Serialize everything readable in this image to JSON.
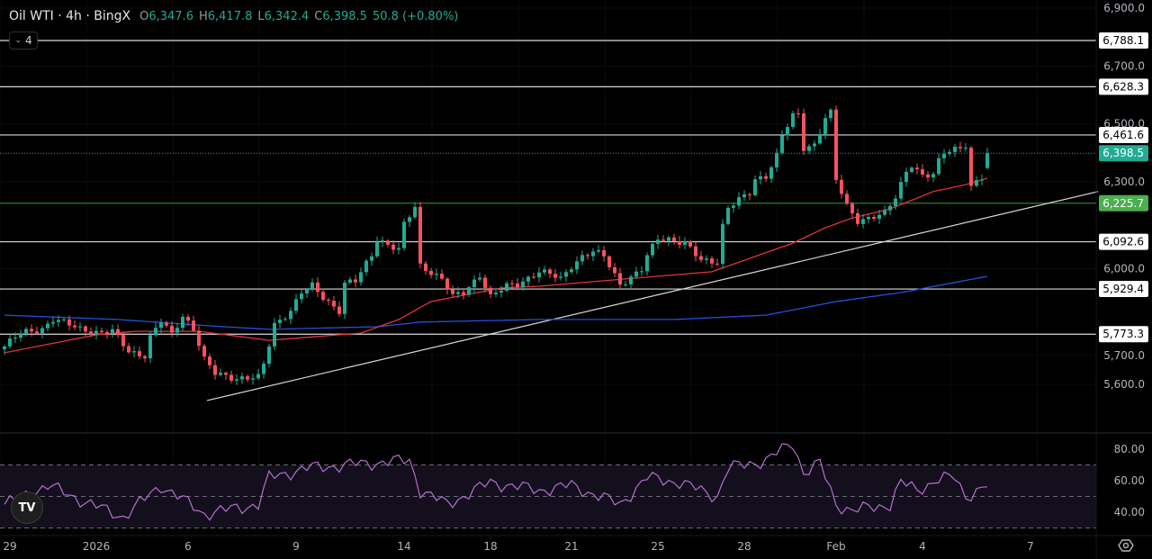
{
  "header": {
    "symbol": "Oil WTI · 4h · BingX",
    "open_label": "O",
    "open": "6,347.6",
    "high_label": "H",
    "high": "6,417.8",
    "low_label": "L",
    "low": "6,342.4",
    "close_label": "C",
    "close": "6,398.5",
    "change": "50.8 (+0.80%)",
    "indicators_count": "4"
  },
  "logo_text": "TV",
  "colors": {
    "up": "#22ab94",
    "down": "#f7525f",
    "ma_fast": "#e0333f",
    "ma_slow": "#2450d8",
    "rsi": "#b66fd0",
    "level": "#d9d9d9",
    "support": "#2e7d32"
  },
  "chart_data": {
    "type": "candlestick",
    "title": "Oil WTI · 4h · BingX",
    "price_axis": {
      "range": [
        5550,
        6920
      ],
      "ticks": [
        "6,900.0",
        "6,700.0",
        "6,500.0",
        "6,300.0",
        "6,000.0",
        "5,700.0",
        "5,600.0"
      ],
      "tick_values": [
        6900,
        6700,
        6500,
        6300,
        6000,
        5700,
        5600
      ]
    },
    "time_axis": {
      "labels": [
        "29",
        "2026",
        "6",
        "9",
        "14",
        "18",
        "21",
        "25",
        "28",
        "Feb",
        "4",
        "7"
      ],
      "label_index": [
        1,
        17,
        34,
        54,
        74,
        90,
        105,
        121,
        137,
        154,
        170,
        190
      ]
    },
    "candle_count": 183,
    "close_keypoints": [
      [
        0,
        5731
      ],
      [
        3,
        5777
      ],
      [
        7,
        5793
      ],
      [
        9,
        5824
      ],
      [
        14,
        5793
      ],
      [
        18,
        5777
      ],
      [
        20,
        5783
      ],
      [
        23,
        5715
      ],
      [
        26,
        5700
      ],
      [
        27,
        5762
      ],
      [
        29,
        5818
      ],
      [
        31,
        5771
      ],
      [
        33,
        5839
      ],
      [
        35,
        5793
      ],
      [
        37,
        5684
      ],
      [
        39,
        5637
      ],
      [
        43,
        5622
      ],
      [
        47,
        5622
      ],
      [
        48,
        5668
      ],
      [
        50,
        5808
      ],
      [
        53,
        5855
      ],
      [
        55,
        5917
      ],
      [
        57,
        5939
      ],
      [
        59,
        5902
      ],
      [
        62,
        5855
      ],
      [
        63,
        5948
      ],
      [
        65,
        5955
      ],
      [
        68,
        6048
      ],
      [
        69,
        6104
      ],
      [
        73,
        6063
      ],
      [
        74,
        6150
      ],
      [
        76,
        6213
      ],
      [
        77,
        6011
      ],
      [
        78,
        6001
      ],
      [
        81,
        5964
      ],
      [
        83,
        5902
      ],
      [
        85,
        5917
      ],
      [
        88,
        5979
      ],
      [
        90,
        5902
      ],
      [
        93,
        5939
      ],
      [
        95,
        5948
      ],
      [
        98,
        5979
      ],
      [
        99,
        5989
      ],
      [
        101,
        5979
      ],
      [
        103,
        5964
      ],
      [
        105,
        6011
      ],
      [
        107,
        6042
      ],
      [
        109,
        6057
      ],
      [
        111,
        6042
      ],
      [
        113,
        5979
      ],
      [
        114,
        5948
      ],
      [
        116,
        5970
      ],
      [
        118,
        5995
      ],
      [
        119,
        6042
      ],
      [
        121,
        6104
      ],
      [
        123,
        6104
      ],
      [
        126,
        6088
      ],
      [
        129,
        6026
      ],
      [
        132,
        6026
      ],
      [
        133,
        6150
      ],
      [
        134,
        6213
      ],
      [
        138,
        6259
      ],
      [
        139,
        6306
      ],
      [
        141,
        6322
      ],
      [
        143,
        6393
      ],
      [
        144,
        6461
      ],
      [
        146,
        6524
      ],
      [
        147,
        6530
      ],
      [
        148,
        6415
      ],
      [
        150,
        6430
      ],
      [
        152,
        6524
      ],
      [
        153,
        6539
      ],
      [
        154,
        6306
      ],
      [
        156,
        6213
      ],
      [
        158,
        6166
      ],
      [
        161,
        6182
      ],
      [
        163,
        6188
      ],
      [
        165,
        6244
      ],
      [
        167,
        6337
      ],
      [
        168,
        6362
      ],
      [
        170,
        6322
      ],
      [
        172,
        6322
      ],
      [
        173,
        6368
      ],
      [
        174,
        6399
      ],
      [
        176,
        6415
      ],
      [
        178,
        6430
      ],
      [
        179,
        6281
      ],
      [
        180,
        6300
      ],
      [
        181,
        6312
      ],
      [
        182,
        6398.5
      ]
    ],
    "last_candle": {
      "open": 6347.6,
      "high": 6417.8,
      "low": 6342.4,
      "close": 6398.5
    },
    "ma_fast_keypoints": [
      [
        0,
        5709
      ],
      [
        17,
        5771
      ],
      [
        24,
        5783
      ],
      [
        36,
        5783
      ],
      [
        49,
        5752
      ],
      [
        66,
        5777
      ],
      [
        73,
        5824
      ],
      [
        79,
        5886
      ],
      [
        92,
        5933
      ],
      [
        99,
        5939
      ],
      [
        131,
        5989
      ],
      [
        146,
        6088
      ],
      [
        152,
        6141
      ],
      [
        157,
        6175
      ],
      [
        164,
        6206
      ],
      [
        172,
        6266
      ],
      [
        178,
        6290
      ],
      [
        182,
        6312
      ]
    ],
    "ma_slow_keypoints": [
      [
        0,
        5839
      ],
      [
        21,
        5824
      ],
      [
        38,
        5802
      ],
      [
        49,
        5790
      ],
      [
        69,
        5799
      ],
      [
        77,
        5815
      ],
      [
        99,
        5824
      ],
      [
        124,
        5824
      ],
      [
        141,
        5839
      ],
      [
        154,
        5886
      ],
      [
        166,
        5917
      ],
      [
        182,
        5973
      ]
    ],
    "trendline": [
      [
        37.5,
        5544
      ],
      [
        202.5,
        6266
      ]
    ],
    "levels": [
      {
        "value": 6788.1,
        "label": "6,788.1",
        "kind": "resistance"
      },
      {
        "value": 6628.3,
        "label": "6,628.3",
        "kind": "resistance"
      },
      {
        "value": 6461.6,
        "label": "6,461.6",
        "kind": "resistance"
      },
      {
        "value": 6225.7,
        "label": "6,225.7",
        "kind": "support"
      },
      {
        "value": 6092.6,
        "label": "6,092.6",
        "kind": "resistance"
      },
      {
        "value": 5929.4,
        "label": "5,929.4",
        "kind": "resistance"
      },
      {
        "value": 5773.3,
        "label": "5,773.3",
        "kind": "resistance"
      }
    ],
    "last_price": {
      "value": 6398.5,
      "label": "6,398.5"
    },
    "rsi": {
      "range": [
        20,
        90
      ],
      "ticks": [
        "80.00",
        "60.00",
        "40.00"
      ],
      "tick_values": [
        80,
        60,
        40
      ],
      "bands": [
        70,
        50,
        30
      ],
      "keypoints": [
        [
          0,
          45
        ],
        [
          8,
          57
        ],
        [
          16,
          45
        ],
        [
          22,
          37
        ],
        [
          29,
          57
        ],
        [
          37,
          39
        ],
        [
          47,
          45
        ],
        [
          49,
          62
        ],
        [
          56,
          68
        ],
        [
          67,
          71
        ],
        [
          75,
          73
        ],
        [
          77,
          54
        ],
        [
          82,
          45
        ],
        [
          90,
          59
        ],
        [
          99,
          54
        ],
        [
          105,
          57
        ],
        [
          114,
          45
        ],
        [
          119,
          62
        ],
        [
          125,
          59
        ],
        [
          132,
          50
        ],
        [
          134,
          68
        ],
        [
          141,
          73
        ],
        [
          146,
          84
        ],
        [
          148,
          65
        ],
        [
          151,
          71
        ],
        [
          154,
          45
        ],
        [
          157,
          41
        ],
        [
          164,
          45
        ],
        [
          166,
          59
        ],
        [
          169,
          54
        ],
        [
          173,
          61
        ],
        [
          176,
          62
        ],
        [
          178,
          50
        ],
        [
          182,
          57
        ]
      ]
    }
  }
}
